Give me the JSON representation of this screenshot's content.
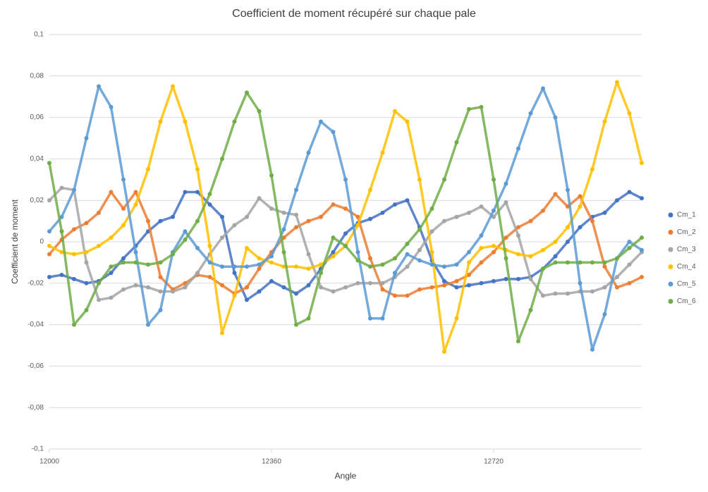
{
  "chart_data": {
    "type": "scatter",
    "title": "Coefficient de moment récupéré sur chaque pale",
    "x_label": "Angle",
    "y_label": "Coefficient de moment",
    "xlim": [
      12000,
      12960
    ],
    "xticks": [
      12000,
      12360,
      12720
    ],
    "ylim": [
      -0.1,
      0.1
    ],
    "yticks": [
      {
        "value": -0.1,
        "label": "-0,1"
      },
      {
        "value": -0.08,
        "label": "-0,08"
      },
      {
        "value": -0.06,
        "label": "-0,06"
      },
      {
        "value": -0.04,
        "label": "-0,04"
      },
      {
        "value": -0.02,
        "label": "-0,02"
      },
      0,
      {
        "value": 0.02,
        "label": "0,02"
      },
      {
        "value": 0.04,
        "label": "0,04"
      },
      {
        "value": 0.06,
        "label": "0,06"
      },
      {
        "value": 0.08,
        "label": "0,08"
      },
      {
        "value": 0.1,
        "label": "0,1"
      }
    ],
    "grid": true,
    "legend": "right",
    "x": [
      12000,
      12020,
      12040,
      12060,
      12080,
      12100,
      12120,
      12140,
      12160,
      12180,
      12200,
      12220,
      12240,
      12260,
      12280,
      12300,
      12320,
      12340,
      12360,
      12380,
      12400,
      12420,
      12440,
      12460,
      12480,
      12500,
      12520,
      12540,
      12560,
      12580,
      12600,
      12620,
      12640,
      12660,
      12680,
      12700,
      12720,
      12740,
      12760,
      12780,
      12800,
      12820,
      12840,
      12860,
      12880,
      12900,
      12920,
      12940,
      12960
    ],
    "series": [
      {
        "name": "Cm_1",
        "color": "#4472c4",
        "values": [
          -0.017,
          -0.016,
          -0.018,
          -0.02,
          -0.019,
          -0.015,
          -0.008,
          -0.002,
          0.005,
          0.01,
          0.012,
          0.024,
          0.024,
          0.018,
          0.012,
          -0.015,
          -0.028,
          -0.024,
          -0.019,
          -0.022,
          -0.025,
          -0.021,
          -0.013,
          -0.005,
          0.004,
          0.009,
          0.011,
          0.014,
          0.018,
          0.02,
          0.007,
          -0.009,
          -0.019,
          -0.022,
          -0.021,
          -0.02,
          -0.019,
          -0.018,
          -0.018,
          -0.017,
          -0.013,
          -0.007,
          0.0,
          0.007,
          0.012,
          0.014,
          0.02,
          0.024,
          0.021
        ]
      },
      {
        "name": "Cm_2",
        "color": "#ed7d31",
        "values": [
          -0.006,
          0.001,
          0.006,
          0.009,
          0.014,
          0.024,
          0.016,
          0.024,
          0.01,
          -0.017,
          -0.023,
          -0.02,
          -0.016,
          -0.017,
          -0.021,
          -0.025,
          -0.022,
          -0.013,
          -0.005,
          0.002,
          0.007,
          0.01,
          0.012,
          0.018,
          0.016,
          0.012,
          -0.008,
          -0.023,
          -0.026,
          -0.026,
          -0.023,
          -0.022,
          -0.021,
          -0.019,
          -0.016,
          -0.01,
          -0.005,
          0.002,
          0.007,
          0.01,
          0.015,
          0.023,
          0.017,
          0.022,
          0.01,
          -0.012,
          -0.022,
          -0.02,
          -0.017
        ]
      },
      {
        "name": "Cm_3",
        "color": "#a5a5a5",
        "values": [
          0.02,
          0.026,
          0.025,
          -0.01,
          -0.028,
          -0.027,
          -0.023,
          -0.021,
          -0.022,
          -0.024,
          -0.024,
          -0.022,
          -0.015,
          -0.006,
          0.002,
          0.008,
          0.012,
          0.021,
          0.016,
          0.014,
          0.013,
          -0.006,
          -0.022,
          -0.024,
          -0.022,
          -0.02,
          -0.02,
          -0.02,
          -0.017,
          -0.012,
          -0.004,
          0.005,
          0.01,
          0.012,
          0.014,
          0.017,
          0.012,
          0.019,
          0.003,
          -0.018,
          -0.026,
          -0.025,
          -0.025,
          -0.024,
          -0.024,
          -0.022,
          -0.017,
          -0.011,
          -0.005
        ]
      },
      {
        "name": "Cm_4",
        "color": "#ffc000",
        "values": [
          -0.002,
          -0.005,
          -0.006,
          -0.005,
          -0.002,
          0.002,
          0.008,
          0.018,
          0.035,
          0.058,
          0.075,
          0.058,
          0.035,
          -0.002,
          -0.044,
          -0.026,
          -0.003,
          -0.008,
          -0.01,
          -0.012,
          -0.012,
          -0.013,
          -0.011,
          -0.007,
          -0.002,
          0.008,
          0.025,
          0.043,
          0.063,
          0.058,
          0.03,
          -0.005,
          -0.053,
          -0.037,
          -0.01,
          -0.003,
          -0.002,
          -0.004,
          -0.006,
          -0.007,
          -0.004,
          0.0,
          0.007,
          0.017,
          0.035,
          0.058,
          0.077,
          0.062,
          0.038
        ]
      },
      {
        "name": "Cm_5",
        "color": "#5b9bd5",
        "values": [
          0.005,
          0.012,
          0.025,
          0.05,
          0.075,
          0.065,
          0.03,
          -0.005,
          -0.04,
          -0.033,
          -0.005,
          0.005,
          -0.003,
          -0.01,
          -0.012,
          -0.012,
          -0.012,
          -0.011,
          -0.007,
          0.006,
          0.025,
          0.043,
          0.058,
          0.053,
          0.03,
          -0.005,
          -0.037,
          -0.037,
          -0.015,
          -0.006,
          -0.009,
          -0.011,
          -0.012,
          -0.011,
          -0.005,
          0.003,
          0.015,
          0.028,
          0.045,
          0.062,
          0.074,
          0.06,
          0.025,
          -0.02,
          -0.052,
          -0.035,
          -0.008,
          0.0,
          -0.004
        ]
      },
      {
        "name": "Cm_6",
        "color": "#70ad47",
        "values": [
          0.038,
          0.005,
          -0.04,
          -0.033,
          -0.02,
          -0.012,
          -0.01,
          -0.01,
          -0.011,
          -0.01,
          -0.006,
          0.001,
          0.01,
          0.023,
          0.04,
          0.058,
          0.072,
          0.063,
          0.032,
          -0.005,
          -0.04,
          -0.037,
          -0.015,
          0.002,
          -0.002,
          -0.009,
          -0.012,
          -0.011,
          -0.008,
          -0.001,
          0.006,
          0.016,
          0.03,
          0.048,
          0.064,
          0.065,
          0.03,
          -0.008,
          -0.048,
          -0.033,
          -0.013,
          -0.01,
          -0.01,
          -0.01,
          -0.01,
          -0.01,
          -0.008,
          -0.003,
          0.002
        ]
      }
    ]
  }
}
